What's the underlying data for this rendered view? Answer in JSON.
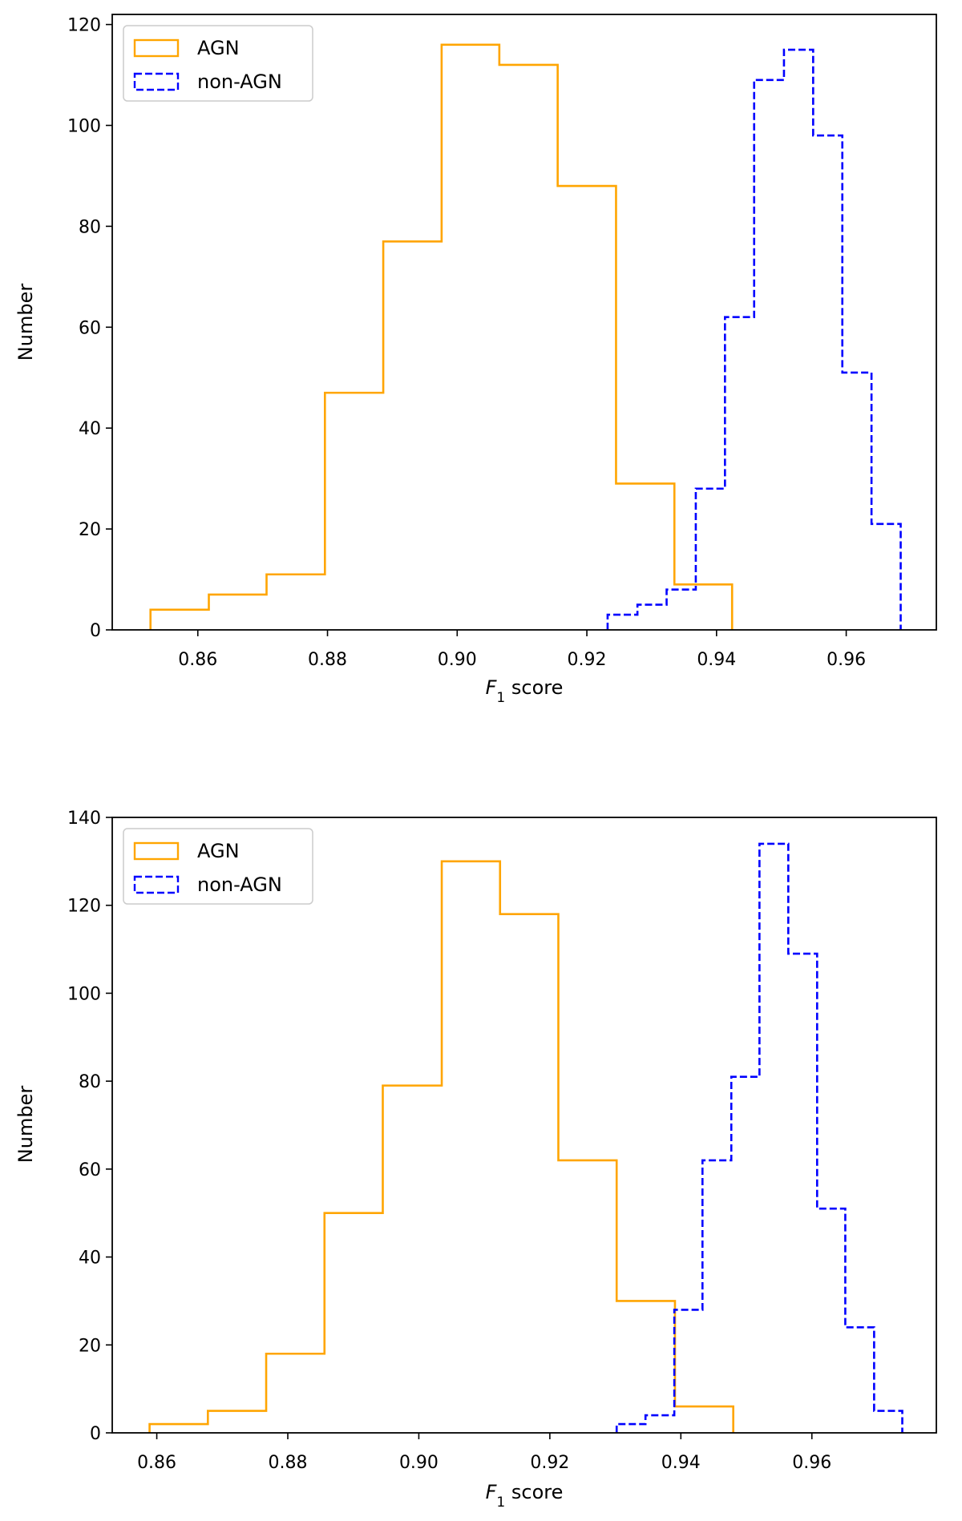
{
  "colors": {
    "agn": "#FFA500",
    "non_agn": "#0000FF",
    "axes": "#000000"
  },
  "chart_data": [
    {
      "type": "histogram",
      "panel": "top",
      "xlabel_italic": "F",
      "xlabel_sub": "1",
      "xlabel_rest": " score",
      "ylabel": "Number",
      "xlim": [
        0.8468,
        0.9739
      ],
      "ylim": [
        0,
        122
      ],
      "xticks": [
        0.86,
        0.88,
        0.9,
        0.92,
        0.94,
        0.96
      ],
      "xtick_labels": [
        "0.86",
        "0.88",
        "0.90",
        "0.92",
        "0.94",
        "0.96"
      ],
      "yticks": [
        0,
        20,
        40,
        60,
        80,
        100,
        120
      ],
      "ytick_labels": [
        "0",
        "20",
        "40",
        "60",
        "80",
        "100",
        "120"
      ],
      "legend_position": "top-left",
      "series": [
        {
          "name": "AGN",
          "style": "solid",
          "color": "#FFA500",
          "bin_edges": [
            0.8527,
            0.8617,
            0.8706,
            0.8796,
            0.8886,
            0.8976,
            0.9065,
            0.9155,
            0.9245,
            0.9335,
            0.9424
          ],
          "counts": [
            4,
            7,
            11,
            47,
            77,
            116,
            112,
            88,
            29,
            9
          ]
        },
        {
          "name": "non-AGN",
          "style": "dashed",
          "color": "#0000FF",
          "bin_edges": [
            0.9232,
            0.9278,
            0.9323,
            0.9368,
            0.9413,
            0.9458,
            0.9504,
            0.9549,
            0.9594,
            0.9639,
            0.9684
          ],
          "counts": [
            3,
            5,
            8,
            28,
            62,
            109,
            115,
            98,
            51,
            21
          ]
        }
      ]
    },
    {
      "type": "histogram",
      "panel": "bottom",
      "xlabel_italic": "F",
      "xlabel_sub": "1",
      "xlabel_rest": " score",
      "ylabel": "Number",
      "xlim": [
        0.8532,
        0.979
      ],
      "ylim": [
        0,
        140
      ],
      "xticks": [
        0.86,
        0.88,
        0.9,
        0.92,
        0.94,
        0.96
      ],
      "xtick_labels": [
        "0.86",
        "0.88",
        "0.90",
        "0.92",
        "0.94",
        "0.96"
      ],
      "yticks": [
        0,
        20,
        40,
        60,
        80,
        100,
        120,
        140
      ],
      "ytick_labels": [
        "0",
        "20",
        "40",
        "60",
        "80",
        "100",
        "120",
        "140"
      ],
      "legend_position": "top-left",
      "series": [
        {
          "name": "AGN",
          "style": "solid",
          "color": "#FFA500",
          "bin_edges": [
            0.8589,
            0.8678,
            0.8767,
            0.8856,
            0.8945,
            0.9035,
            0.9124,
            0.9213,
            0.9302,
            0.9391,
            0.948
          ],
          "counts": [
            2,
            5,
            18,
            50,
            79,
            130,
            118,
            62,
            30,
            6
          ]
        },
        {
          "name": "non-AGN",
          "style": "dashed",
          "color": "#0000FF",
          "bin_edges": [
            0.9302,
            0.9346,
            0.939,
            0.9433,
            0.9477,
            0.952,
            0.9564,
            0.9608,
            0.9651,
            0.9695,
            0.9738
          ],
          "counts": [
            2,
            4,
            28,
            62,
            81,
            134,
            109,
            51,
            24,
            5
          ]
        }
      ]
    }
  ]
}
